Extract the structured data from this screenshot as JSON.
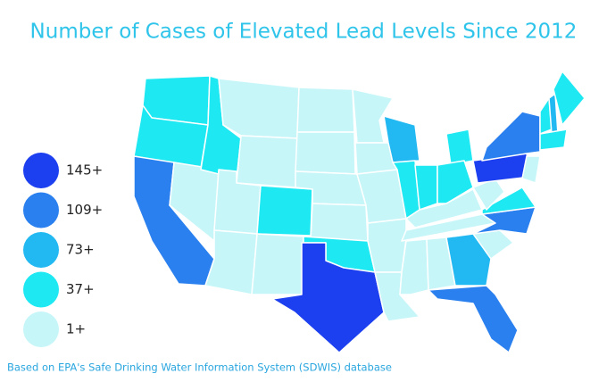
{
  "title": "Number of Cases of Elevated Lead Levels Since 2012",
  "legend": [
    {
      "label": "145+",
      "color": "#1c3ff0"
    },
    {
      "label": "109+",
      "color": "#2b80ef"
    },
    {
      "label": "73+",
      "color": "#22b9f2"
    },
    {
      "label": "37+",
      "color": "#1ee8f2"
    },
    {
      "label": "1+",
      "color": "#c7f6f9"
    }
  ],
  "source": "Based on EPA's Safe Drinking Water Information System (SDWIS) database"
}
